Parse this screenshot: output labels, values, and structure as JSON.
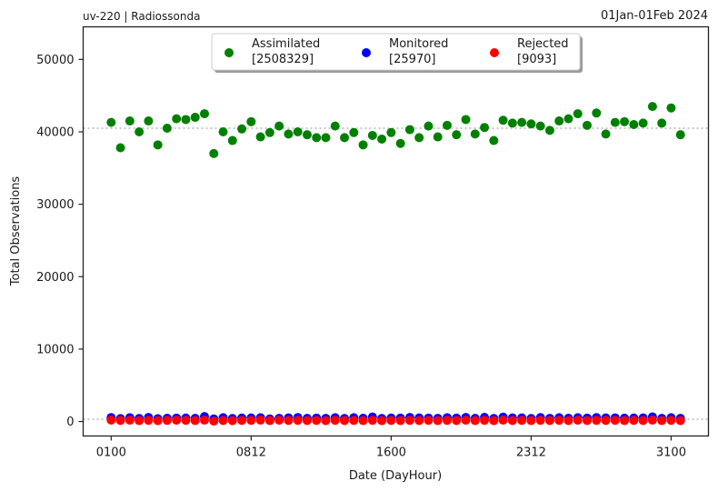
{
  "header": {
    "left_title": "uv-220  |  Radiossonda",
    "right_title": "01Jan-01Feb 2024"
  },
  "chart_data": {
    "type": "scatter",
    "title": "",
    "xlabel": "Date (DayHour)",
    "ylabel": "Total Observations",
    "x_tick_labels": [
      "0100",
      "0812",
      "1600",
      "2312",
      "3100"
    ],
    "x_tick_index": [
      0,
      15,
      30,
      45,
      60
    ],
    "xlim": [
      -3,
      64
    ],
    "ylim": [
      -2000,
      54500
    ],
    "y_ticks": [
      0,
      10000,
      20000,
      30000,
      40000,
      50000
    ],
    "reference_lines": [
      40500,
      300
    ],
    "series": [
      {
        "name": "Assimilated",
        "total": "[2508329]",
        "color": "#008000",
        "values": [
          41300,
          37800,
          41500,
          40000,
          41500,
          38200,
          40500,
          41800,
          41700,
          42000,
          42500,
          37000,
          40000,
          38800,
          40400,
          41400,
          39300,
          39900,
          40800,
          39700,
          40000,
          39600,
          39200,
          39200,
          40800,
          39200,
          39900,
          38200,
          39500,
          39000,
          39900,
          38400,
          40300,
          39200,
          40800,
          39300,
          40900,
          39600,
          41700,
          39700,
          40600,
          38800,
          41600,
          41200,
          41300,
          41100,
          40800,
          40200,
          41500,
          41800,
          42500,
          40900,
          42600,
          39700,
          41300,
          41400,
          41000,
          41200,
          43500,
          41200,
          43300,
          39600
        ]
      },
      {
        "name": "Monitored",
        "total": "[25970]",
        "color": "#0000ff",
        "values": [
          550,
          400,
          520,
          420,
          560,
          380,
          450,
          470,
          480,
          430,
          680,
          350,
          520,
          420,
          480,
          490,
          520,
          350,
          440,
          500,
          550,
          430,
          470,
          430,
          520,
          420,
          530,
          450,
          620,
          420,
          480,
          470,
          560,
          490,
          470,
          430,
          520,
          470,
          560,
          430,
          570,
          420,
          600,
          490,
          500,
          420,
          540,
          430,
          530,
          450,
          520,
          470,
          540,
          490,
          500,
          460,
          480,
          500,
          640,
          430,
          530,
          430
        ]
      },
      {
        "name": "Rejected",
        "total": "[9093]",
        "color": "#ff0000",
        "values": [
          200,
          150,
          180,
          130,
          170,
          120,
          160,
          180,
          170,
          140,
          190,
          60,
          140,
          120,
          150,
          160,
          190,
          130,
          180,
          150,
          170,
          140,
          150,
          120,
          170,
          140,
          150,
          130,
          170,
          120,
          150,
          130,
          160,
          140,
          170,
          130,
          160,
          140,
          180,
          130,
          170,
          120,
          190,
          140,
          160,
          130,
          170,
          140,
          170,
          130,
          180,
          140,
          160,
          150,
          170,
          130,
          160,
          140,
          190,
          130,
          170,
          120
        ]
      }
    ],
    "legend_position": "top-center"
  }
}
